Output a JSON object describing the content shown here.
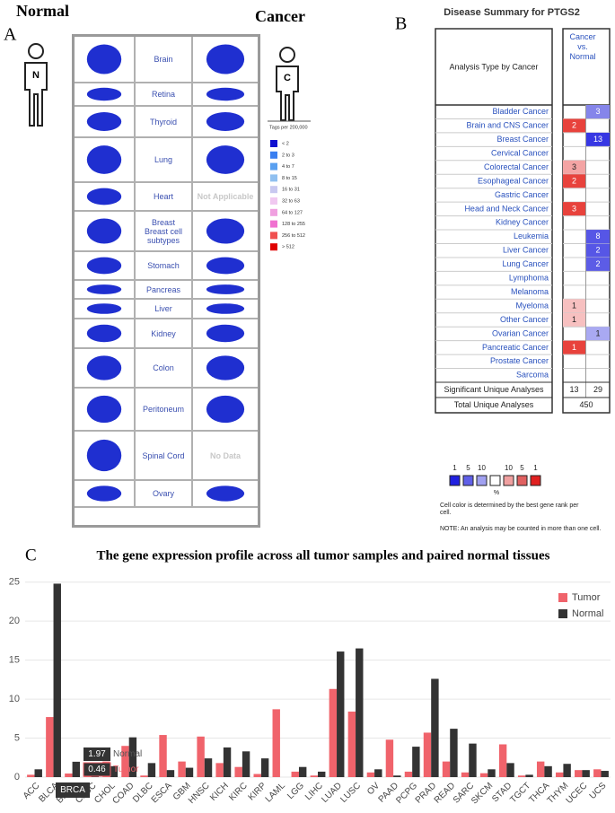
{
  "panel_a": {
    "letter": "A",
    "normal_label": "Normal",
    "cancer_label": "Cancer",
    "normal_icon": "N",
    "cancer_icon": "C",
    "rows": [
      {
        "organ": "Brain"
      },
      {
        "organ": "Retina"
      },
      {
        "organ": "Thyroid"
      },
      {
        "organ": "Lung"
      },
      {
        "organ": "Heart",
        "cancer_note": "Not Applicable"
      },
      {
        "organ": "Breast",
        "subtitle": "Breast cell subtypes"
      },
      {
        "organ": "Stomach"
      },
      {
        "organ": "Pancreas"
      },
      {
        "organ": "Liver"
      },
      {
        "organ": "Kidney"
      },
      {
        "organ": "Colon"
      },
      {
        "organ": "Peritoneum"
      },
      {
        "organ": "Spinal Cord",
        "cancer_note": "No Data"
      },
      {
        "organ": "Ovary"
      }
    ],
    "legend": {
      "title": "Tags per 200,000",
      "items": [
        {
          "label": "< 2",
          "color": "#1010d0"
        },
        {
          "label": "2 to 3",
          "color": "#3a7ff0"
        },
        {
          "label": "4 to 7",
          "color": "#5aa0f0"
        },
        {
          "label": "8 to 15",
          "color": "#90c0f0"
        },
        {
          "label": "16 to 31",
          "color": "#c8c8f0"
        },
        {
          "label": "32 to 63",
          "color": "#f0c8f0"
        },
        {
          "label": "64 to 127",
          "color": "#f0a0e0"
        },
        {
          "label": "128 to 255",
          "color": "#f070d0"
        },
        {
          "label": "256 to 512",
          "color": "#f05050"
        },
        {
          "label": "> 512",
          "color": "#e00000"
        }
      ]
    }
  },
  "panel_b": {
    "letter": "B",
    "title": "Disease Summary for PTGS2",
    "row_header": "Analysis Type by Cancer",
    "column_header": "Cancer vs. Normal",
    "rows": [
      {
        "name": "Bladder Cancer",
        "red": null,
        "blue": {
          "value": 3,
          "color": "#8585ea"
        }
      },
      {
        "name": "Brain and CNS Cancer",
        "red": {
          "value": 2,
          "color": "#e8423c"
        },
        "blue": null
      },
      {
        "name": "Breast Cancer",
        "red": null,
        "blue": {
          "value": 13,
          "color": "#3737e3"
        }
      },
      {
        "name": "Cervical Cancer",
        "red": null,
        "blue": null
      },
      {
        "name": "Colorectal Cancer",
        "red": {
          "value": 3,
          "color": "#f4a4a4"
        },
        "blue": null
      },
      {
        "name": "Esophageal Cancer",
        "red": {
          "value": 2,
          "color": "#e8423c"
        },
        "blue": null
      },
      {
        "name": "Gastric Cancer",
        "red": null,
        "blue": null
      },
      {
        "name": "Head and Neck Cancer",
        "red": {
          "value": 3,
          "color": "#e8423c"
        },
        "blue": null
      },
      {
        "name": "Kidney Cancer",
        "red": null,
        "blue": null
      },
      {
        "name": "Leukemia",
        "red": null,
        "blue": {
          "value": 8,
          "color": "#5656e6"
        }
      },
      {
        "name": "Liver Cancer",
        "red": null,
        "blue": {
          "value": 2,
          "color": "#5656e6"
        }
      },
      {
        "name": "Lung Cancer",
        "red": null,
        "blue": {
          "value": 2,
          "color": "#5c5ce6"
        }
      },
      {
        "name": "Lymphoma",
        "red": null,
        "blue": null
      },
      {
        "name": "Melanoma",
        "red": null,
        "blue": null
      },
      {
        "name": "Myeloma",
        "red": {
          "value": 1,
          "color": "#f7c0c0"
        },
        "blue": null
      },
      {
        "name": "Other Cancer",
        "red": {
          "value": 1,
          "color": "#f7c0c0"
        },
        "blue": null
      },
      {
        "name": "Ovarian Cancer",
        "red": null,
        "blue": {
          "value": 1,
          "color": "#a9a9f2"
        }
      },
      {
        "name": "Pancreatic Cancer",
        "red": {
          "value": 1,
          "color": "#e8423c"
        },
        "blue": null
      },
      {
        "name": "Prostate Cancer",
        "red": null,
        "blue": null
      },
      {
        "name": "Sarcoma",
        "red": null,
        "blue": null
      }
    ],
    "significant": {
      "label": "Significant Unique Analyses",
      "red": 13,
      "blue": 29
    },
    "total": {
      "label": "Total Unique Analyses",
      "value": 450
    },
    "legend_scale": [
      {
        "label": 1,
        "color": "#2020e0"
      },
      {
        "label": 5,
        "color": "#6060e8"
      },
      {
        "label": 10,
        "color": "#a0a0f0"
      },
      {
        "label": null,
        "color": "#ffffff"
      },
      {
        "label": 10,
        "color": "#f0a0a0"
      },
      {
        "label": 5,
        "color": "#e06060"
      },
      {
        "label": 1,
        "color": "#e02020"
      }
    ],
    "legend_unit": "%",
    "legend_note": [
      "Cell color is determined by the best gene rank per",
      "cell."
    ],
    "note": "NOTE: An analysis may be counted in more than one cell."
  },
  "panel_c": {
    "letter": "C"
  },
  "chart_data": {
    "type": "bar",
    "title": "The gene expression profile across all tumor samples and paired normal tissues",
    "categories": [
      "ACC",
      "BLCA",
      "BRCA",
      "CESC",
      "CHOL",
      "COAD",
      "DLBC",
      "ESCA",
      "GBM",
      "HNSC",
      "KICH",
      "KIRC",
      "KIRP",
      "LAML",
      "LGG",
      "LIHC",
      "LUAD",
      "LUSC",
      "OV",
      "PAAD",
      "PCPG",
      "PRAD",
      "READ",
      "SARC",
      "SKCM",
      "STAD",
      "TGCT",
      "THCA",
      "THYM",
      "UCEC",
      "UCS"
    ],
    "series": [
      {
        "name": "Tumor",
        "color": "#f0636b",
        "values": [
          0.3,
          7.7,
          0.46,
          1.6,
          2.0,
          4.0,
          0.2,
          5.4,
          2.0,
          5.2,
          1.8,
          1.3,
          0.4,
          8.7,
          0.7,
          0.2,
          11.3,
          8.4,
          0.6,
          4.8,
          0.7,
          5.7,
          2.0,
          0.6,
          0.5,
          4.2,
          0.2,
          2.0,
          0.6,
          0.9,
          1.0
        ]
      },
      {
        "name": "Normal",
        "color": "#333333",
        "values": [
          1.0,
          24.8,
          1.97,
          0.3,
          1.4,
          5.1,
          1.8,
          0.9,
          1.2,
          2.4,
          3.8,
          3.3,
          2.4,
          null,
          1.3,
          0.7,
          16.1,
          16.5,
          1.0,
          0.2,
          3.9,
          12.6,
          6.2,
          4.3,
          1.0,
          1.8,
          0.3,
          1.4,
          1.7,
          0.9,
          0.8
        ]
      }
    ],
    "ylim": [
      0,
      26
    ],
    "yticks": [
      0,
      5,
      10,
      15,
      20,
      25
    ],
    "grid": true,
    "legend": "top-right"
  }
}
